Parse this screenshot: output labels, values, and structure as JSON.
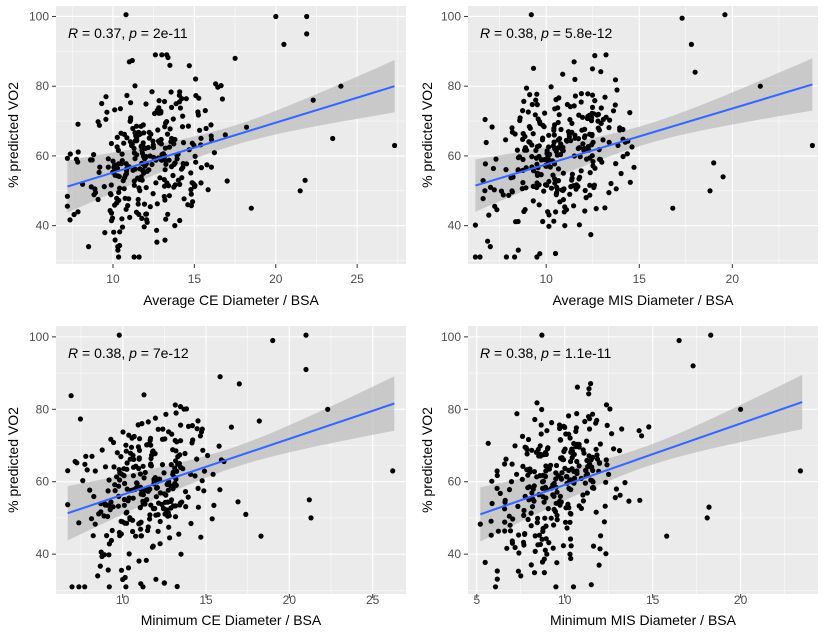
{
  "figure_title": "",
  "colors": {
    "panel_bg": "#EBEBEB",
    "grid_major": "#FFFFFF",
    "point": "#000000",
    "fit_line": "#3366FF",
    "ci_band": "#BEBEBE"
  },
  "chart_data": [
    {
      "type": "scatter",
      "xlabel": "Average CE Diameter / BSA",
      "ylabel": "% predicted VO2",
      "annotation": {
        "r_symbol": "R",
        "r_value": "= 0.37,",
        "p_symbol": "p",
        "p_value": "= 2e-11"
      },
      "xlim": [
        6.5,
        28
      ],
      "ylim": [
        29,
        103
      ],
      "xticks": [
        10,
        15,
        20,
        25
      ],
      "yticks": [
        40,
        60,
        80,
        100
      ],
      "grid": true,
      "fit": {
        "x0": 7.2,
        "x1": 27.3,
        "y0": 51.2,
        "y1": 80.0,
        "ci0": 2.8,
        "ci1": 7.5
      },
      "x_range": [
        7.2,
        27.3
      ],
      "seed": 11,
      "n_points": 300,
      "points": [
        [
          10.8,
          100.5
        ],
        [
          21.9,
          100
        ],
        [
          20.0,
          100
        ],
        [
          21.9,
          95
        ],
        [
          13.0,
          89
        ],
        [
          13.3,
          89
        ],
        [
          17.5,
          88
        ],
        [
          11.0,
          87
        ],
        [
          20.5,
          92
        ],
        [
          24.0,
          80
        ],
        [
          22.3,
          76
        ],
        [
          27.3,
          63
        ],
        [
          23.5,
          65
        ],
        [
          21.8,
          53
        ],
        [
          21.5,
          50
        ],
        [
          18.5,
          45
        ],
        [
          13.8,
          40
        ],
        [
          8.5,
          34
        ],
        [
          11.3,
          31
        ],
        [
          10.3,
          33
        ],
        [
          9.5,
          38
        ]
      ]
    },
    {
      "type": "scatter",
      "xlabel": "Average MIS Diameter / BSA",
      "ylabel": "% predicted VO2",
      "annotation": {
        "r_symbol": "R",
        "r_value": "= 0.38,",
        "p_symbol": "p",
        "p_value": "= 5.8e-12"
      },
      "xlim": [
        5.8,
        24.6
      ],
      "ylim": [
        29,
        103
      ],
      "xticks": [
        10,
        15,
        20
      ],
      "yticks": [
        40,
        60,
        80,
        100
      ],
      "grid": true,
      "fit": {
        "x0": 6.2,
        "x1": 24.3,
        "y0": 51.5,
        "y1": 80.5,
        "ci0": 2.8,
        "ci1": 7.5
      },
      "x_range": [
        6.2,
        24.3
      ],
      "seed": 23,
      "n_points": 300,
      "points": [
        [
          9.2,
          100.5
        ],
        [
          17.3,
          99.5
        ],
        [
          19.6,
          100.5
        ],
        [
          11.5,
          87
        ],
        [
          17.8,
          92
        ],
        [
          21.5,
          80
        ],
        [
          18.0,
          84
        ],
        [
          24.3,
          63
        ],
        [
          19.0,
          58
        ],
        [
          19.5,
          54
        ],
        [
          18.8,
          50
        ],
        [
          16.8,
          45
        ],
        [
          11.0,
          40
        ],
        [
          7.0,
          34
        ],
        [
          9.5,
          31
        ],
        [
          10.5,
          32
        ],
        [
          8.5,
          33
        ]
      ]
    },
    {
      "type": "scatter",
      "xlabel": "Minimum CE Diameter / BSA",
      "ylabel": "% predicted VO2",
      "annotation": {
        "r_symbol": "R",
        "r_value": "= 0.38,",
        "p_symbol": "p",
        "p_value": "= 7e-12"
      },
      "xlim": [
        6,
        27
      ],
      "ylim": [
        29,
        103
      ],
      "xticks": [
        10,
        15,
        20,
        25
      ],
      "yticks": [
        40,
        60,
        80,
        100
      ],
      "grid": true,
      "fit": {
        "x0": 6.7,
        "x1": 26.3,
        "y0": 51.3,
        "y1": 81.6,
        "ci0": 2.8,
        "ci1": 7.5
      },
      "x_range": [
        6.7,
        26.3
      ],
      "seed": 37,
      "n_points": 300,
      "points": [
        [
          9.8,
          100.5
        ],
        [
          19.0,
          99
        ],
        [
          21.0,
          100.5
        ],
        [
          21.0,
          91
        ],
        [
          17.0,
          87
        ],
        [
          22.3,
          80
        ],
        [
          26.2,
          63
        ],
        [
          21.2,
          55
        ],
        [
          21.3,
          50
        ],
        [
          18.3,
          45
        ],
        [
          13.5,
          40
        ],
        [
          8.5,
          34
        ],
        [
          9.2,
          31
        ],
        [
          12.5,
          32
        ],
        [
          10.0,
          33
        ]
      ]
    },
    {
      "type": "scatter",
      "xlabel": "Minimum MIS Diameter / BSA",
      "ylabel": "% predicted VO2",
      "annotation": {
        "r_symbol": "R",
        "r_value": "= 0.38,",
        "p_symbol": "p",
        "p_value": "= 1.1e-11"
      },
      "xlim": [
        4.5,
        24.4
      ],
      "ylim": [
        29,
        103
      ],
      "xticks": [
        5,
        10,
        15,
        20
      ],
      "yticks": [
        40,
        60,
        80,
        100
      ],
      "grid": true,
      "fit": {
        "x0": 5.2,
        "x1": 23.5,
        "y0": 51,
        "y1": 82,
        "ci0": 2.8,
        "ci1": 7.5
      },
      "x_range": [
        5.2,
        23.5
      ],
      "seed": 53,
      "n_points": 300,
      "points": [
        [
          8.7,
          100.5
        ],
        [
          16.5,
          99
        ],
        [
          18.3,
          100.5
        ],
        [
          17.3,
          92
        ],
        [
          20.0,
          80
        ],
        [
          23.4,
          63
        ],
        [
          18.2,
          53
        ],
        [
          18.1,
          50
        ],
        [
          15.8,
          45
        ],
        [
          10.3,
          40
        ],
        [
          7.5,
          34
        ],
        [
          9.5,
          31
        ],
        [
          10.5,
          31
        ]
      ]
    }
  ]
}
